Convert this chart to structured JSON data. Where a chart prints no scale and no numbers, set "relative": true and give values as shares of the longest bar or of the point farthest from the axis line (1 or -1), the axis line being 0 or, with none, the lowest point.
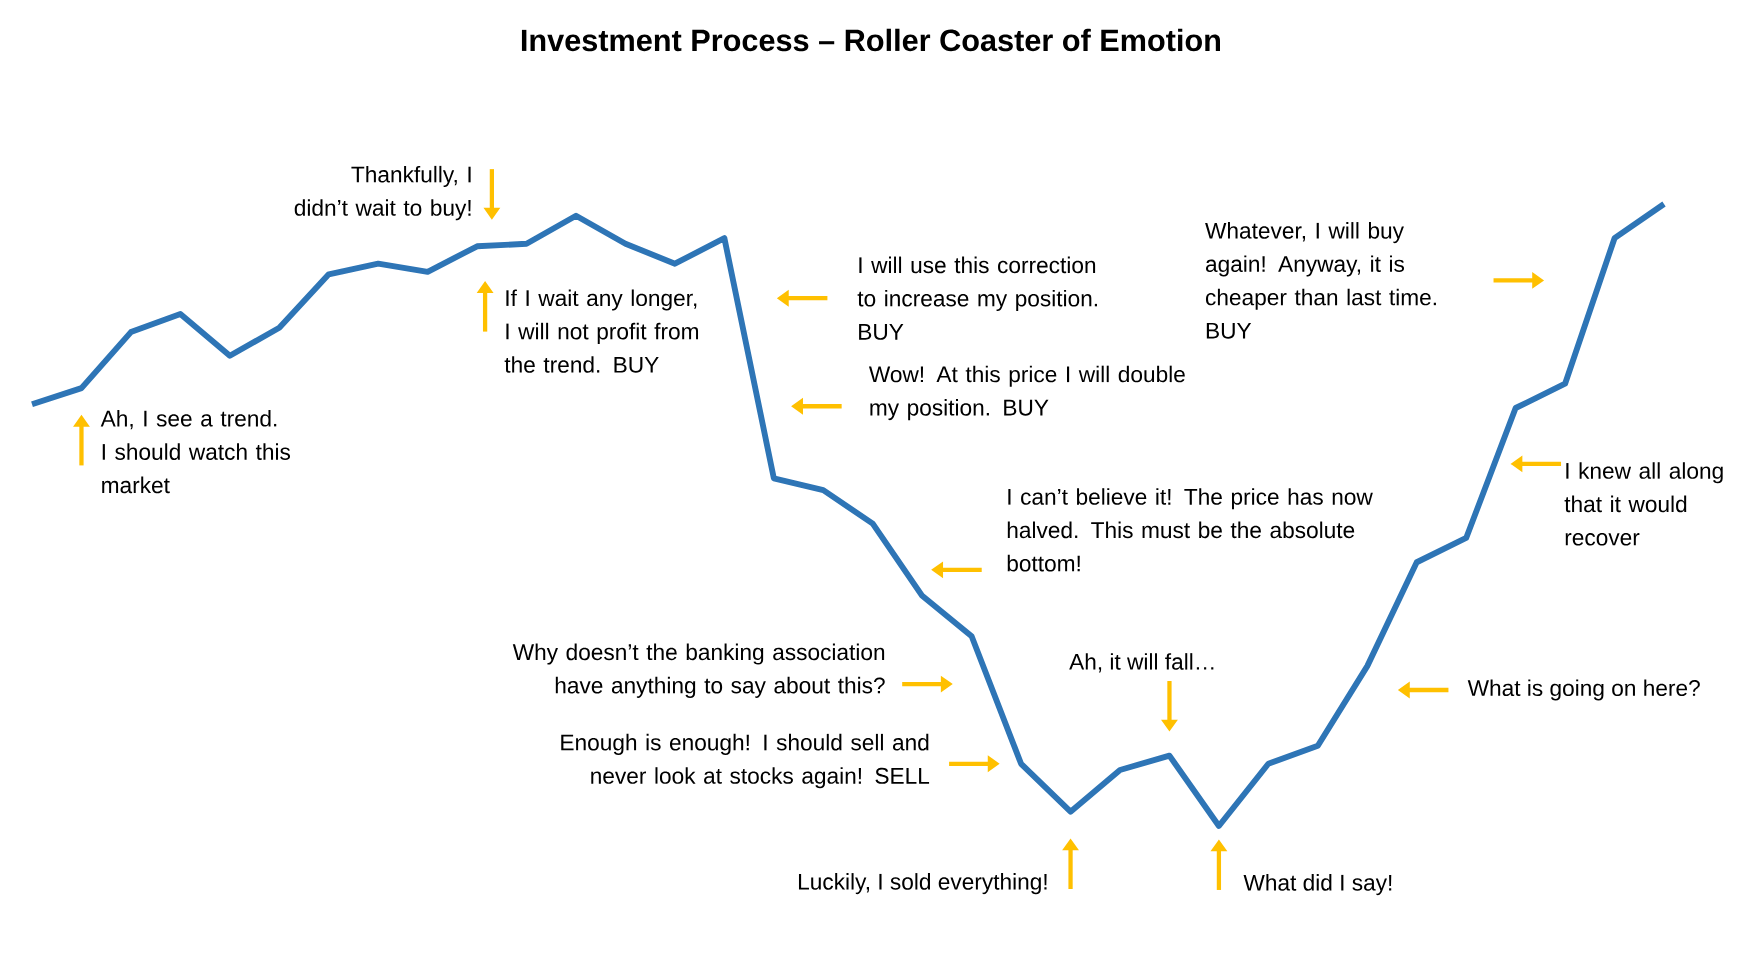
{
  "chart_data": {
    "type": "line",
    "title": "Investment Process – Roller Coaster of Emotion",
    "relative": true,
    "categories": [
      null,
      null,
      null,
      null,
      null,
      null,
      null,
      null,
      null,
      null,
      null,
      null,
      null,
      null,
      null,
      null,
      null,
      null,
      null,
      null,
      null,
      null,
      null,
      null,
      null,
      null,
      null,
      null,
      null,
      null,
      null,
      null,
      null,
      null
    ],
    "series": [
      {
        "color": "#2e75b6",
        "values": [
          0.678,
          0.704,
          0.794,
          0.823,
          0.756,
          0.801,
          0.887,
          0.904,
          0.891,
          0.932,
          0.936,
          0.981,
          0.936,
          0.904,
          0.945,
          0.559,
          0.54,
          0.486,
          0.37,
          0.305,
          0.1,
          0.023,
          0.09,
          0.113,
          0,
          0.1,
          0.129,
          0.257,
          0.424,
          0.463,
          0.672,
          0.711,
          0.945,
          1
        ]
      }
    ],
    "annotations": [
      "Ah, I see a trend. I should watch this market",
      "Thankfully, I didn’t wait to buy!",
      "If I wait any longer, I will not profit from the trend. BUY",
      "I will use this correction to increase my position. BUY",
      "Wow! At this price I will double my position. BUY",
      "I can’t believe it! The price has now halved. This must be the absolute bottom!",
      "Why doesn’t the banking association have anything to say about this?",
      "Ah, it will fall…",
      "Enough is enough! I should sell and never look at stocks again! SELL",
      "Luckily, I sold everything!",
      "What did I say!",
      "What is going on here?",
      "I knew all along that it would recover",
      "Whatever, I will buy again! Anyway, it is cheaper than last time. BUY"
    ]
  }
}
